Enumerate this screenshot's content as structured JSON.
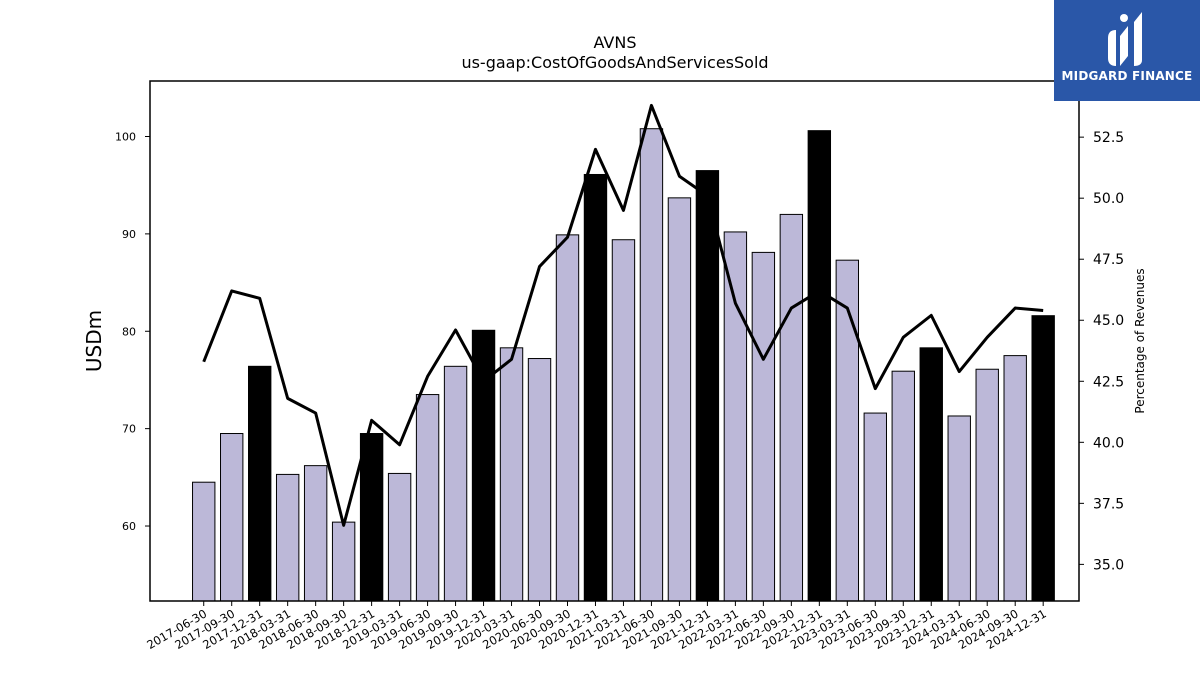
{
  "header": {
    "title": "AVNS",
    "subtitle": "us-gaap:CostOfGoodsAndServicesSold"
  },
  "logo": {
    "text": "MIDGARD FINANCE",
    "icon": "midgard-logo-icon",
    "background": "#2a57a8"
  },
  "chart_data": {
    "type": "bar",
    "title": "AVNS",
    "subtitle": "us-gaap:CostOfGoodsAndServicesSold",
    "ylabel": "USDm",
    "y2label": "Percentage of Revenues",
    "ylim": [
      52.3,
      105.7
    ],
    "y2lim": [
      33.5,
      54.8
    ],
    "yticks": [
      60,
      70,
      80,
      90,
      100
    ],
    "y2ticks": [
      35.0,
      37.5,
      40.0,
      42.5,
      45.0,
      47.5,
      50.0,
      52.5
    ],
    "grid": false,
    "colors": {
      "bar": "#bcb8d8",
      "bar_q4": "#000000",
      "line": "#000000"
    },
    "categories": [
      "2017-06-30",
      "2017-09-30",
      "2017-12-31",
      "2018-03-31",
      "2018-06-30",
      "2018-09-30",
      "2018-12-31",
      "2019-03-31",
      "2019-06-30",
      "2019-09-30",
      "2019-12-31",
      "2020-03-31",
      "2020-06-30",
      "2020-09-30",
      "2020-12-31",
      "2021-03-31",
      "2021-06-30",
      "2021-09-30",
      "2021-12-31",
      "2022-03-31",
      "2022-06-30",
      "2022-09-30",
      "2022-12-31",
      "2023-03-31",
      "2023-06-30",
      "2023-09-30",
      "2023-12-31",
      "2024-03-31",
      "2024-06-30",
      "2024-09-30",
      "2024-12-31"
    ],
    "series": [
      {
        "type": "bar",
        "values": [
          64.5,
          69.5,
          76.4,
          65.3,
          66.2,
          60.4,
          69.5,
          65.4,
          73.5,
          76.4,
          80.1,
          78.3,
          77.2,
          89.9,
          96.1,
          89.4,
          100.8,
          93.7,
          96.5,
          90.2,
          88.1,
          92.0,
          100.6,
          87.3,
          71.6,
          75.9,
          78.3,
          71.3,
          76.1,
          77.5,
          81.6
        ],
        "highlight": [
          false,
          false,
          true,
          false,
          false,
          false,
          true,
          false,
          false,
          false,
          true,
          false,
          false,
          false,
          true,
          false,
          false,
          false,
          true,
          false,
          false,
          false,
          true,
          false,
          false,
          false,
          true,
          false,
          false,
          false,
          true
        ]
      },
      {
        "type": "line",
        "axis": "right",
        "values": [
          43.3,
          46.2,
          45.9,
          41.8,
          41.2,
          36.6,
          40.9,
          39.9,
          42.7,
          44.6,
          42.5,
          43.4,
          47.2,
          48.4,
          52.0,
          49.5,
          53.8,
          50.9,
          50.1,
          45.7,
          43.4,
          45.5,
          46.2,
          45.5,
          42.2,
          44.3,
          45.2,
          42.9,
          44.3,
          45.5,
          45.4
        ]
      }
    ]
  }
}
